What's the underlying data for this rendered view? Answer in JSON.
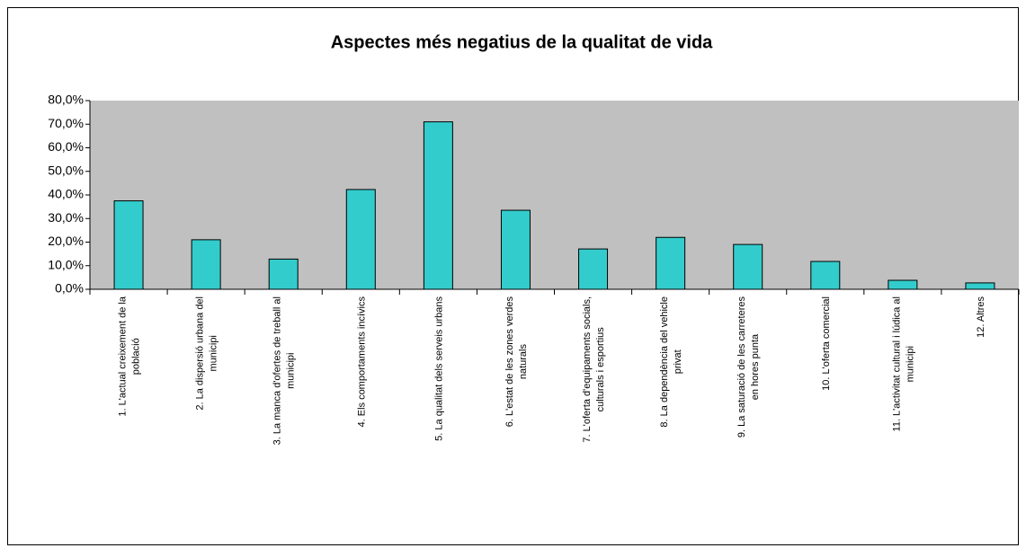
{
  "chart_data": {
    "type": "bar",
    "title": "Aspectes més negatius de la qualitat de vida",
    "categories": [
      [
        "1. L'actual creixement de la",
        "població"
      ],
      [
        "2. La dispersió urbana del",
        "municipi"
      ],
      [
        "3. La manca d'ofertes de treball al",
        "municipi"
      ],
      [
        "4. Els comportaments incívics"
      ],
      [
        "5. La qualitat dels serveis urbans"
      ],
      [
        "6. L'estat de les zones verdes",
        "naturals"
      ],
      [
        "7. L'oferta d'equipaments socials,",
        "culturals i esportius"
      ],
      [
        "8. La dependència del vehicle",
        "privat"
      ],
      [
        "9. La saturació de les carreteres",
        "en hores punta"
      ],
      [
        "10. L'oferta comercial"
      ],
      [
        "11. L'activitat cultural i lúdica al",
        "municipi"
      ],
      [
        "12. Altres"
      ]
    ],
    "values": [
      37.5,
      21,
      12.8,
      42.3,
      71,
      33.5,
      17.1,
      22,
      19,
      11.8,
      3.8,
      2.7
    ],
    "color": "#33cccc",
    "plot_background": "#c0c0c0",
    "ylim": [
      0,
      80
    ],
    "yticks": [
      {
        "value": 0,
        "label": "0,0%"
      },
      {
        "value": 10,
        "label": "10,0%"
      },
      {
        "value": 20,
        "label": "20,0%"
      },
      {
        "value": 30,
        "label": "30,0%"
      },
      {
        "value": 40,
        "label": "40,0%"
      },
      {
        "value": 50,
        "label": "50,0%"
      },
      {
        "value": 60,
        "label": "60,0%"
      },
      {
        "value": 70,
        "label": "70,0%"
      },
      {
        "value": 80,
        "label": "80,0%"
      }
    ]
  }
}
